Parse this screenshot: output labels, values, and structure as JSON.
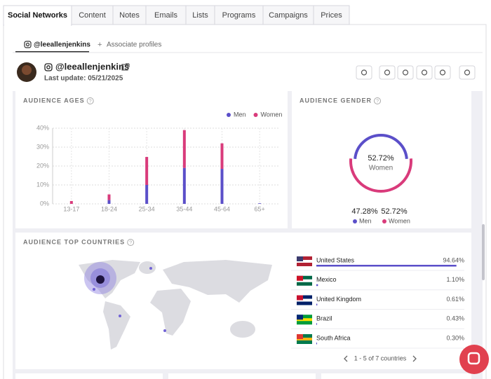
{
  "tabs": [
    "Social Networks",
    "Content",
    "Notes",
    "Emails",
    "Lists",
    "Programs",
    "Campaigns",
    "Prices"
  ],
  "profile_tabs": [
    "@leeallenjenkins",
    "Associate profiles"
  ],
  "profile": {
    "handle": "@leeallenjenkins",
    "last_update": "Last update: 05/21/2025"
  },
  "chart_data": [
    {
      "type": "bar",
      "stacked": true,
      "title": "AUDIENCE AGES",
      "categories": [
        "13-17",
        "18-24",
        "25-34",
        "35-44",
        "45-64",
        "65+"
      ],
      "series": [
        {
          "name": "Men",
          "color": "#5b4fc9",
          "values": [
            0,
            2,
            10,
            19,
            18.5,
            0.3
          ]
        },
        {
          "name": "Women",
          "color": "#d93b7b",
          "values": [
            1.5,
            3,
            14.8,
            20,
            13.5,
            0
          ]
        }
      ],
      "ylim": [
        0,
        40
      ],
      "yticks": [
        {
          "value": 0,
          "label": "0%"
        },
        {
          "value": 10,
          "label": "10%"
        },
        {
          "value": 20,
          "label": "20%"
        },
        {
          "value": 30,
          "label": "30%"
        },
        {
          "value": 40,
          "label": "40%"
        }
      ],
      "grid": true,
      "legend": "top-right"
    },
    {
      "type": "donut",
      "title": "AUDIENCE GENDER",
      "categories": [
        "Men",
        "Women"
      ],
      "values": [
        47.28,
        52.72
      ],
      "value_labels": [
        "47.28%",
        "52.72%"
      ],
      "colors": [
        "#5b4fc9",
        "#d93b7b"
      ]
    },
    {
      "type": "bar",
      "orientation": "horizontal",
      "title": "AUDIENCE TOP COUNTRIES",
      "categories": [
        "United States",
        "Mexico",
        "United Kingdom",
        "Brazil",
        "South Africa"
      ],
      "values": [
        94.64,
        1.1,
        0.61,
        0.43,
        0.3
      ],
      "value_labels": [
        "94.64%",
        "1.10%",
        "0.61%",
        "0.43%",
        "0.30%"
      ],
      "color": "#5b4fc9",
      "xlim": [
        0,
        100
      ],
      "pagination": "1 - 5 of 7 countries"
    }
  ]
}
